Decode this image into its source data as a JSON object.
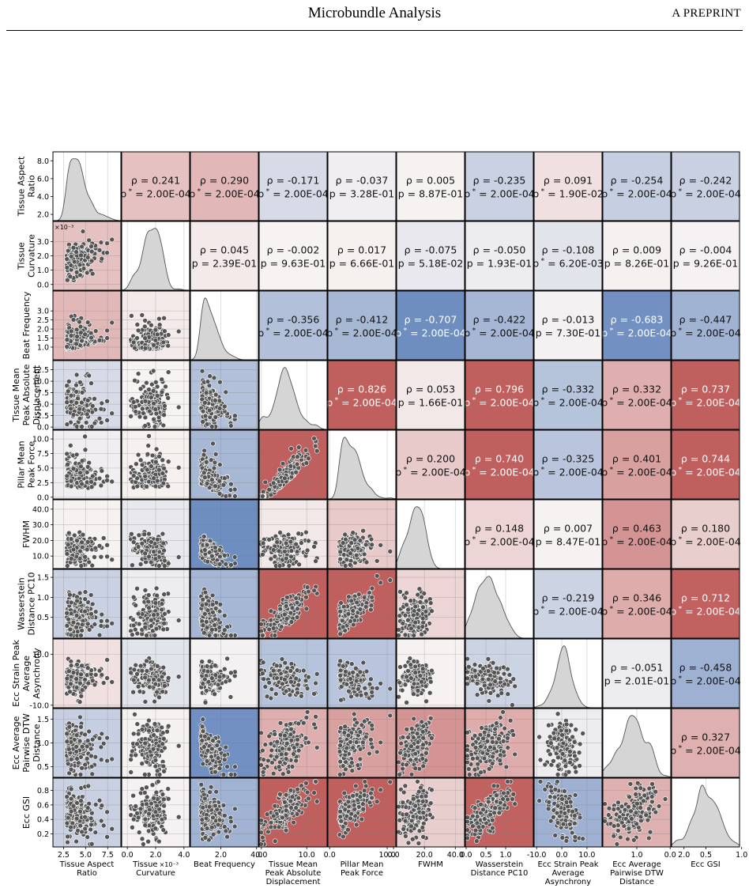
{
  "header": {
    "title": "Microbundle Analysis",
    "right": "A PREPRINT"
  },
  "colors": {
    "strong_positive": "#c0605e",
    "strong_negative": "#6b8cbf",
    "neutral": "#f7f3f3",
    "kde_fill": "#d5d5d5",
    "point_fill": "#555555"
  },
  "chart_data": {
    "type": "pairplot",
    "title": "",
    "variables": [
      {
        "label": [
          "Tissue Aspect",
          "Ratio"
        ],
        "lim": [
          1.3,
          9.0
        ],
        "ticks": [
          2.0,
          4.0,
          6.0,
          8.0
        ],
        "xticks": [
          2.5,
          5.0,
          7.5
        ],
        "mean": 3.6,
        "sd": 1.2,
        "skew": true
      },
      {
        "label": [
          "Tissue",
          "Curvature"
        ],
        "lim": [
          -0.0004,
          0.0044
        ],
        "ticks": [
          0.0,
          0.001,
          0.002,
          0.003
        ],
        "tick_labels": [
          "0.0",
          "1.0",
          "2.0",
          "3.0"
        ],
        "xticks": [
          0.0,
          0.002,
          0.004
        ],
        "xtick_labels": [
          "0.0",
          "2.0",
          "4.0"
        ],
        "offset": "×10⁻³",
        "mean": 0.0017,
        "sd": 0.0006
      },
      {
        "label": [
          "Beat Frequency"
        ],
        "lim": [
          0.3,
          4.1
        ],
        "ticks": [
          1.0,
          1.5,
          2.0,
          2.5,
          3.0
        ],
        "xticks": [
          2.0,
          4.0
        ],
        "mean": 1.2,
        "sd": 0.5,
        "skew": true
      },
      {
        "label": [
          "Tissue Mean",
          "Peak Absolute",
          "Displacement"
        ],
        "lim": [
          -0.5,
          14.5
        ],
        "ticks": [
          0.0,
          2.5,
          5.0,
          7.5,
          10.0,
          12.5
        ],
        "xticks": [
          0.0,
          10.0
        ],
        "mean": 5.0,
        "sd": 2.6
      },
      {
        "label": [
          "Pillar Mean",
          "Peak Force"
        ],
        "lim": [
          -0.3,
          11.5
        ],
        "ticks": [
          0.0,
          2.5,
          5.0,
          7.5,
          10.0
        ],
        "xticks": [
          0.0,
          10.0
        ],
        "mean": 3.0,
        "sd": 2.2,
        "skew": true
      },
      {
        "label": [
          "FWHM"
        ],
        "lim": [
          2.0,
          46.0
        ],
        "ticks": [
          10.0,
          20.0,
          30.0,
          40.0
        ],
        "xticks": [
          0.0,
          20.0,
          40.0
        ],
        "mean": 14.0,
        "sd": 5.0
      },
      {
        "label": [
          "Wasserstein",
          "Distance PC10"
        ],
        "lim": [
          -0.02,
          1.7
        ],
        "ticks": [
          0.0,
          0.5,
          1.0,
          1.5
        ],
        "xticks": [
          0.0,
          0.5,
          1.0
        ],
        "mean": 0.55,
        "sd": 0.3
      },
      {
        "label": [
          "Ecc Strain Peak",
          "Average",
          "Asynchrony"
        ],
        "lim": [
          -11.0,
          16.0
        ],
        "ticks": [
          -10.0,
          10.0
        ],
        "xticks": [
          -10.0,
          0.0,
          10.0
        ],
        "mean": 0.5,
        "sd": 3.0
      },
      {
        "label": [
          "Ecc Average",
          "Pairwise DTW",
          "Distance"
        ],
        "lim": [
          0.28,
          1.72
        ],
        "ticks": [
          0.5,
          1.0,
          1.5
        ],
        "xticks": [
          1.0,
          2.0
        ],
        "mean": 0.95,
        "sd": 0.25
      },
      {
        "label": [
          "Ecc GSI"
        ],
        "lim": [
          0.02,
          0.97
        ],
        "ticks": [
          0.2,
          0.4,
          0.6,
          0.8
        ],
        "xticks": [
          0.0,
          0.5,
          1.0
        ],
        "mean": 0.5,
        "sd": 0.17
      }
    ],
    "corr_rows": [
      [
        null,
        0.241,
        0.29,
        -0.171,
        -0.037,
        0.005,
        -0.235,
        0.091,
        -0.254,
        -0.242
      ],
      [
        null,
        null,
        0.045,
        -0.002,
        0.017,
        -0.075,
        -0.05,
        -0.108,
        0.009,
        -0.004
      ],
      [
        null,
        null,
        null,
        -0.356,
        -0.412,
        -0.707,
        -0.422,
        -0.013,
        -0.683,
        -0.447
      ],
      [
        null,
        null,
        null,
        null,
        0.826,
        0.053,
        0.796,
        -0.332,
        0.332,
        0.737
      ],
      [
        null,
        null,
        null,
        null,
        null,
        0.2,
        0.74,
        -0.325,
        0.401,
        0.744
      ],
      [
        null,
        null,
        null,
        null,
        null,
        null,
        0.148,
        0.007,
        0.463,
        0.18
      ],
      [
        null,
        null,
        null,
        null,
        null,
        null,
        null,
        -0.219,
        0.346,
        0.712
      ],
      [
        null,
        null,
        null,
        null,
        null,
        null,
        null,
        null,
        -0.051,
        -0.458
      ],
      [
        null,
        null,
        null,
        null,
        null,
        null,
        null,
        null,
        null,
        0.327
      ]
    ],
    "p_rows": [
      [
        null,
        "2.00E-04",
        "2.00E-04",
        "2.00E-04",
        "3.28E-01",
        "8.87E-01",
        "2.00E-04",
        "1.90E-02",
        "2.00E-04",
        "2.00E-04"
      ],
      [
        null,
        null,
        "2.39E-01",
        "9.63E-01",
        "6.66E-01",
        "5.18E-02",
        "1.93E-01",
        "6.20E-03",
        "8.26E-01",
        "9.26E-01"
      ],
      [
        null,
        null,
        null,
        "2.00E-04",
        "2.00E-04",
        "2.00E-04",
        "2.00E-04",
        "7.30E-01",
        "2.00E-04",
        "2.00E-04"
      ],
      [
        null,
        null,
        null,
        null,
        "2.00E-04",
        "1.66E-01",
        "2.00E-04",
        "2.00E-04",
        "2.00E-04",
        "2.00E-04"
      ],
      [
        null,
        null,
        null,
        null,
        null,
        "2.00E-04",
        "2.00E-04",
        "2.00E-04",
        "2.00E-04",
        "2.00E-04"
      ],
      [
        null,
        null,
        null,
        null,
        null,
        null,
        "2.00E-04",
        "8.47E-01",
        "2.00E-04",
        "2.00E-04"
      ],
      [
        null,
        null,
        null,
        null,
        null,
        null,
        null,
        "2.00E-04",
        "2.00E-04",
        "2.00E-04"
      ],
      [
        null,
        null,
        null,
        null,
        null,
        null,
        null,
        null,
        "2.01E-01",
        "2.00E-04"
      ],
      [
        null,
        null,
        null,
        null,
        null,
        null,
        null,
        null,
        null,
        "2.00E-04"
      ]
    ],
    "sig_rows": [
      [
        null,
        true,
        true,
        true,
        false,
        false,
        true,
        true,
        true,
        true
      ],
      [
        null,
        null,
        false,
        false,
        false,
        false,
        false,
        true,
        false,
        false
      ],
      [
        null,
        null,
        null,
        true,
        true,
        true,
        true,
        false,
        true,
        true
      ],
      [
        null,
        null,
        null,
        null,
        true,
        false,
        true,
        true,
        true,
        true
      ],
      [
        null,
        null,
        null,
        null,
        null,
        true,
        true,
        true,
        true,
        true
      ],
      [
        null,
        null,
        null,
        null,
        null,
        null,
        true,
        false,
        true,
        true
      ],
      [
        null,
        null,
        null,
        null,
        null,
        null,
        null,
        true,
        true,
        true
      ],
      [
        null,
        null,
        null,
        null,
        null,
        null,
        null,
        null,
        false,
        true
      ],
      [
        null,
        null,
        null,
        null,
        null,
        null,
        null,
        null,
        null,
        true
      ]
    ],
    "rho_symbol": "ρ",
    "p_symbol": "p",
    "p_sig_symbol": "p*",
    "grid": true
  }
}
